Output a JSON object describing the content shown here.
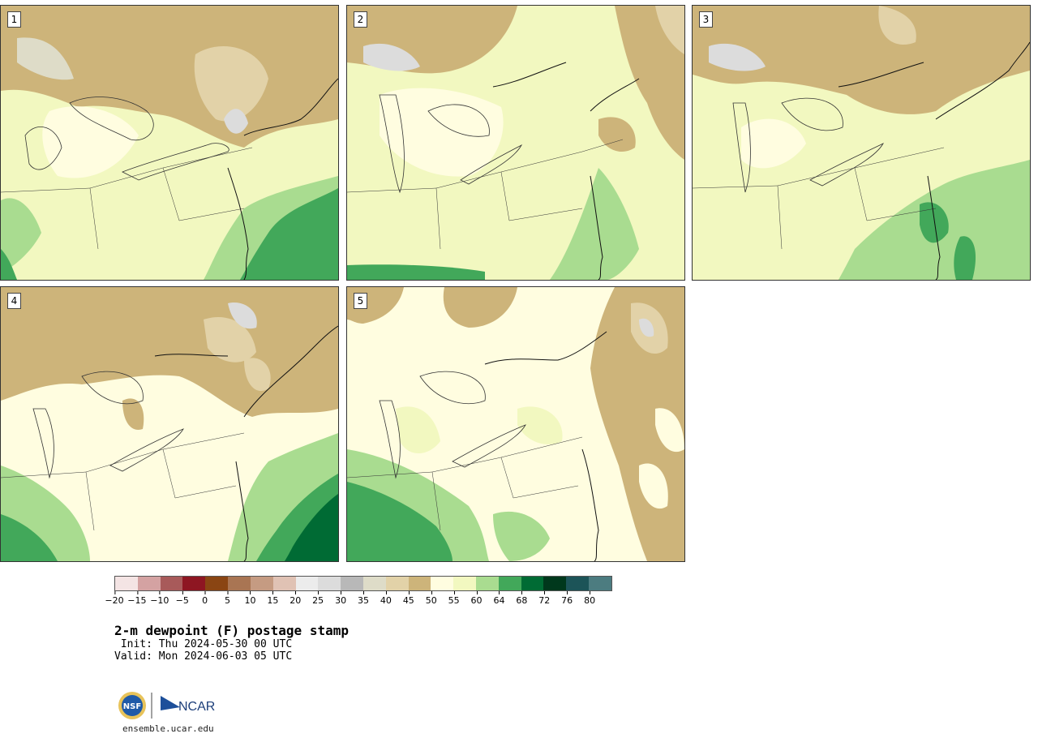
{
  "panels": [
    {
      "label": "1"
    },
    {
      "label": "2"
    },
    {
      "label": "3"
    },
    {
      "label": "4"
    },
    {
      "label": "5"
    }
  ],
  "colorbar": {
    "colors": [
      "#f4e4e4",
      "#d4a2a2",
      "#a85a5a",
      "#8e1622",
      "#8a4513",
      "#a97553",
      "#c59b82",
      "#e0c2b4",
      "#ececec",
      "#dcdcdc",
      "#b8b8b8",
      "#dedcc8",
      "#e2d2a8",
      "#cdb47a",
      "#fffde0",
      "#f2f8c0",
      "#a9dc90",
      "#42a85a",
      "#006b34",
      "#00381c",
      "#1c5458",
      "#4c7c80"
    ],
    "tick_labels": [
      "−20",
      "−15",
      "−10",
      "−5",
      "0",
      "5",
      "10",
      "15",
      "20",
      "25",
      "30",
      "35",
      "40",
      "45",
      "50",
      "55",
      "60",
      "64",
      "68",
      "72",
      "76",
      "80"
    ]
  },
  "title": "2-m dewpoint (F) postage stamp",
  "init": " Init: Thu 2024-05-30 00 UTC",
  "valid": "Valid: Mon 2024-06-03 05 UTC",
  "logo": {
    "nsf": "NSF",
    "ncar": "NCAR"
  },
  "url": "ensemble.ucar.edu"
}
